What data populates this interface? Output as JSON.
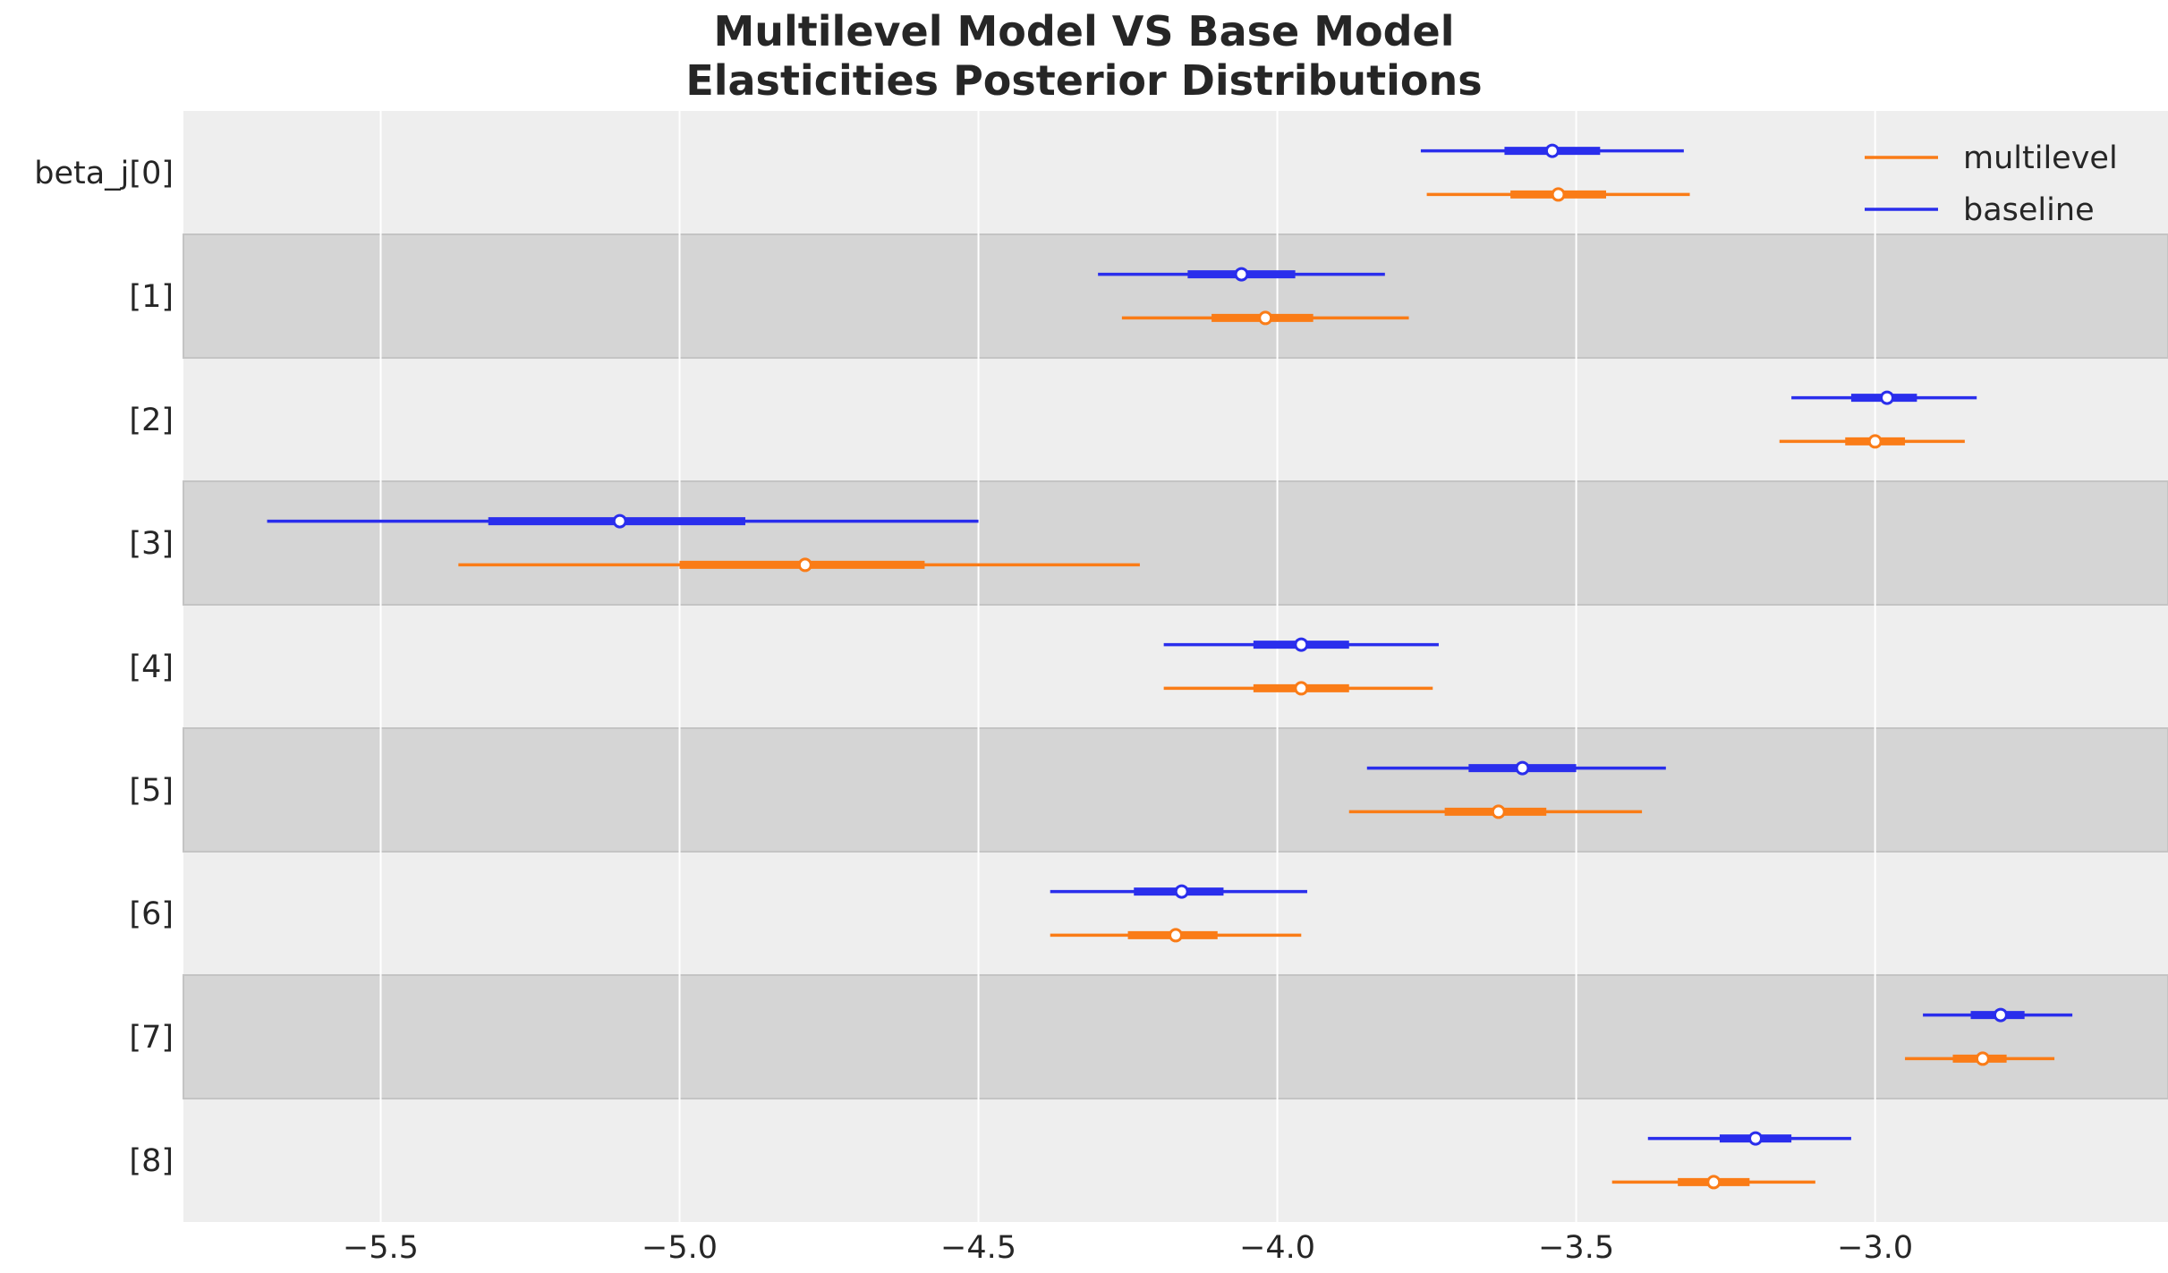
{
  "chart_data": {
    "type": "forest",
    "title_lines": [
      "Multilevel Model VS Base Model",
      "Elasticities Posterior Distributions"
    ],
    "xlabel": "",
    "ylabel": "",
    "xlim": [
      -5.83,
      -2.51
    ],
    "xticks": [
      -5.5,
      -5.0,
      -4.5,
      -4.0,
      -3.5,
      -3.0
    ],
    "xtick_labels": [
      "−5.5",
      "−5.0",
      "−4.5",
      "−4.0",
      "−3.5",
      "−3.0"
    ],
    "grid": true,
    "legend_position": "top-right",
    "row_labels": [
      "beta_j[0]",
      "[1]",
      "[2]",
      "[3]",
      "[4]",
      "[5]",
      "[6]",
      "[7]",
      "[8]"
    ],
    "series": [
      {
        "name": "baseline",
        "color": "#2a2eec",
        "points": [
          {
            "hdi_low": -3.76,
            "q_low": -3.62,
            "mean": -3.54,
            "q_high": -3.46,
            "hdi_high": -3.32
          },
          {
            "hdi_low": -4.3,
            "q_low": -4.15,
            "mean": -4.06,
            "q_high": -3.97,
            "hdi_high": -3.82
          },
          {
            "hdi_low": -3.14,
            "q_low": -3.04,
            "mean": -2.98,
            "q_high": -2.93,
            "hdi_high": -2.83
          },
          {
            "hdi_low": -5.69,
            "q_low": -5.32,
            "mean": -5.1,
            "q_high": -4.89,
            "hdi_high": -4.5
          },
          {
            "hdi_low": -4.19,
            "q_low": -4.04,
            "mean": -3.96,
            "q_high": -3.88,
            "hdi_high": -3.73
          },
          {
            "hdi_low": -3.85,
            "q_low": -3.68,
            "mean": -3.59,
            "q_high": -3.5,
            "hdi_high": -3.35
          },
          {
            "hdi_low": -4.38,
            "q_low": -4.24,
            "mean": -4.16,
            "q_high": -4.09,
            "hdi_high": -3.95
          },
          {
            "hdi_low": -2.92,
            "q_low": -2.84,
            "mean": -2.79,
            "q_high": -2.75,
            "hdi_high": -2.67
          },
          {
            "hdi_low": -3.38,
            "q_low": -3.26,
            "mean": -3.2,
            "q_high": -3.14,
            "hdi_high": -3.04
          }
        ]
      },
      {
        "name": "multilevel",
        "color": "#fa7c17",
        "points": [
          {
            "hdi_low": -3.75,
            "q_low": -3.61,
            "mean": -3.53,
            "q_high": -3.45,
            "hdi_high": -3.31
          },
          {
            "hdi_low": -4.26,
            "q_low": -4.11,
            "mean": -4.02,
            "q_high": -3.94,
            "hdi_high": -3.78
          },
          {
            "hdi_low": -3.16,
            "q_low": -3.05,
            "mean": -3.0,
            "q_high": -2.95,
            "hdi_high": -2.85
          },
          {
            "hdi_low": -5.37,
            "q_low": -5.0,
            "mean": -4.79,
            "q_high": -4.59,
            "hdi_high": -4.23
          },
          {
            "hdi_low": -4.19,
            "q_low": -4.04,
            "mean": -3.96,
            "q_high": -3.88,
            "hdi_high": -3.74
          },
          {
            "hdi_low": -3.88,
            "q_low": -3.72,
            "mean": -3.63,
            "q_high": -3.55,
            "hdi_high": -3.39
          },
          {
            "hdi_low": -4.38,
            "q_low": -4.25,
            "mean": -4.17,
            "q_high": -4.1,
            "hdi_high": -3.96
          },
          {
            "hdi_low": -2.95,
            "q_low": -2.87,
            "mean": -2.82,
            "q_high": -2.78,
            "hdi_high": -2.7
          },
          {
            "hdi_low": -3.44,
            "q_low": -3.33,
            "mean": -3.27,
            "q_high": -3.21,
            "hdi_high": -3.1
          }
        ]
      }
    ],
    "legend_order": [
      "multilevel",
      "baseline"
    ],
    "colors": {
      "plot_bg": "#eeeeee",
      "band_shade": "#d5d5d5",
      "grid": "#ffffff",
      "text": "#262626"
    }
  }
}
